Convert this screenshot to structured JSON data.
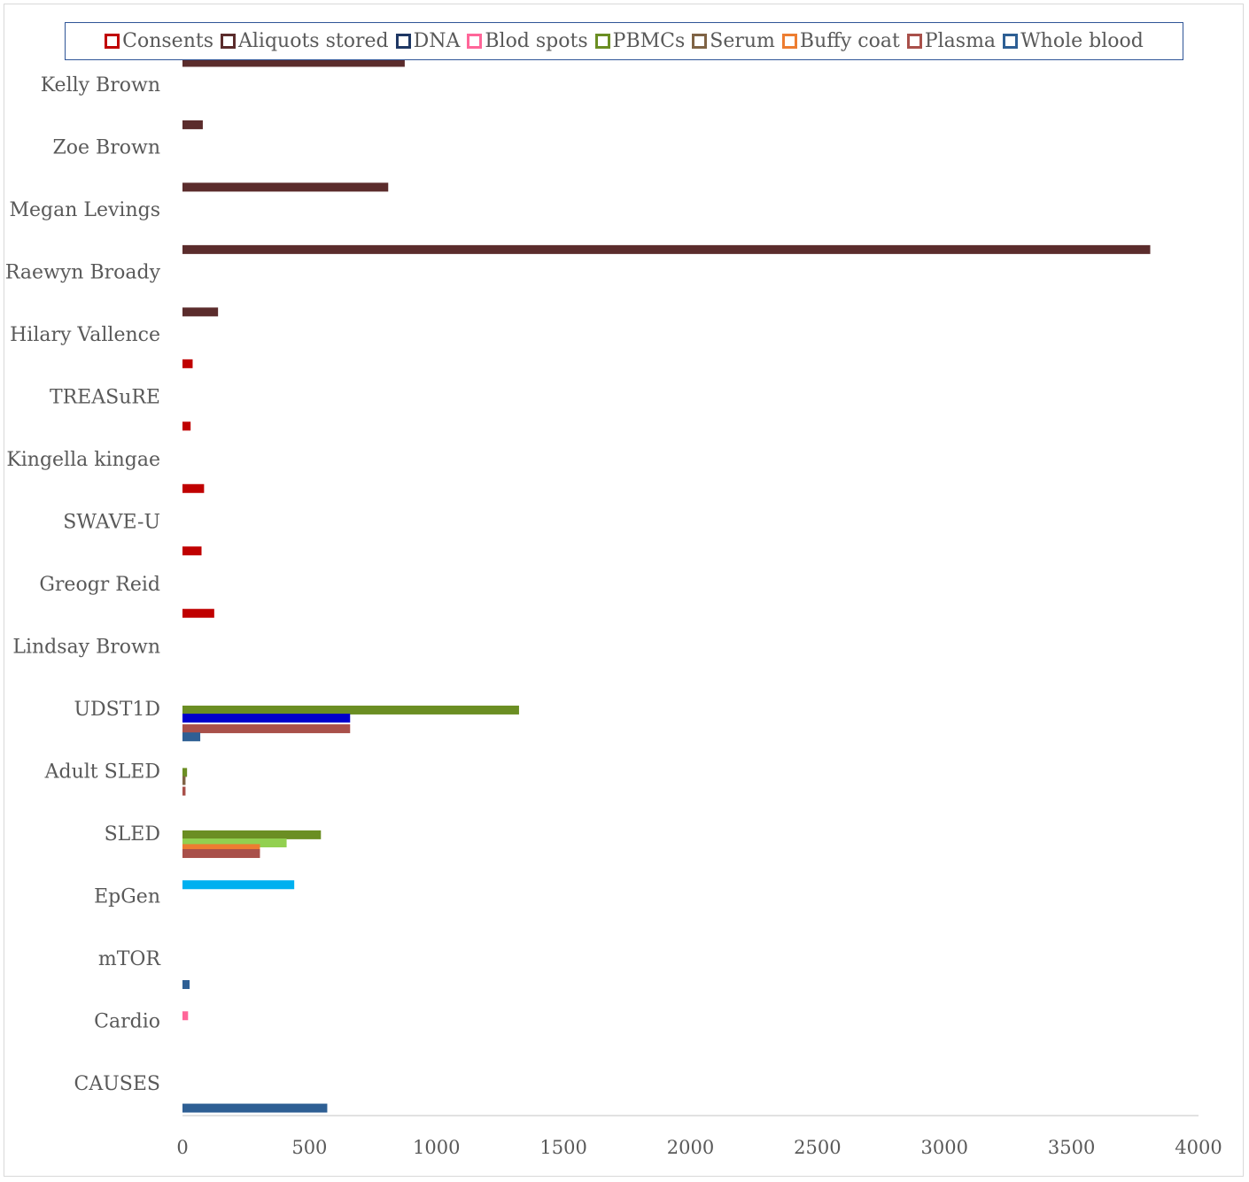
{
  "chart_data": {
    "type": "bar",
    "orientation": "horizontal",
    "legend_position": "top",
    "xlim": [
      0,
      4000
    ],
    "x_ticks": [
      "0",
      "500",
      "1000",
      "1500",
      "2000",
      "2500",
      "3000",
      "3500",
      "4000"
    ],
    "categories": [
      "Kelly Brown",
      "Zoe Brown",
      "Megan Levings",
      "Raewyn Broady",
      "Hilary Vallence",
      "TREASuRE",
      "Kingella kingae",
      "SWAVE-U",
      "Greogr Reid",
      "Lindsay Brown",
      "UDST1D",
      "Adult SLED",
      "SLED",
      "EpGen",
      "mTOR",
      "Cardio",
      "CAUSES"
    ],
    "legend": [
      {
        "name": "Consents",
        "color": "#c00000"
      },
      {
        "name": "Aliquots stored",
        "color": "#5b2c2c"
      },
      {
        "name": "DNA",
        "color": "#1f3864"
      },
      {
        "name": "Blod spots",
        "color": "#ff6699"
      },
      {
        "name": "PBMCs",
        "color": "#6b8e23"
      },
      {
        "name": "Serum",
        "color": "#7f6345"
      },
      {
        "name": "Buffy coat",
        "color": "#ed7d31"
      },
      {
        "name": "Plasma",
        "color": "#a9504a"
      },
      {
        "name": "Whole blood",
        "color": "#2e5f94"
      }
    ],
    "bars": [
      {
        "category": "Kelly Brown",
        "series": "Aliquots stored",
        "value": 875,
        "color": "#5b2c2c",
        "slot": -0.38
      },
      {
        "category": "Zoe Brown",
        "series": "Aliquots stored",
        "value": 80,
        "color": "#5b2c2c",
        "slot": -0.38
      },
      {
        "category": "Megan Levings",
        "series": "Aliquots stored",
        "value": 810,
        "color": "#5b2c2c",
        "slot": -0.38
      },
      {
        "category": "Raewyn Broady",
        "series": "Aliquots stored",
        "value": 3810,
        "color": "#5b2c2c",
        "slot": -0.38
      },
      {
        "category": "Hilary Vallence",
        "series": "Aliquots stored",
        "value": 140,
        "color": "#5b2c2c",
        "slot": -0.38
      },
      {
        "category": "TREASuRE",
        "series": "Consents",
        "value": 40,
        "color": "#c00000",
        "slot": -0.55
      },
      {
        "category": "Kingella kingae",
        "series": "Consents",
        "value": 32,
        "color": "#c00000",
        "slot": -0.55
      },
      {
        "category": "SWAVE-U",
        "series": "Consents",
        "value": 85,
        "color": "#c00000",
        "slot": -0.55
      },
      {
        "category": "Greogr Reid",
        "series": "Consents",
        "value": 75,
        "color": "#c00000",
        "slot": -0.55
      },
      {
        "category": "Lindsay Brown",
        "series": "Consents",
        "value": 125,
        "color": "#c00000",
        "slot": -0.55
      },
      {
        "category": "UDST1D",
        "series": "PBMCs",
        "value": 1325,
        "color": "#6b8e23",
        "slot": 0.0
      },
      {
        "category": "UDST1D",
        "series": "DNA",
        "value": 660,
        "color": "#0000cc",
        "slot": 0.13
      },
      {
        "category": "UDST1D",
        "series": "Plasma",
        "value": 660,
        "color": "#a9504a",
        "slot": 0.3
      },
      {
        "category": "UDST1D",
        "series": "Whole blood",
        "value": 70,
        "color": "#2e5f94",
        "slot": 0.43
      },
      {
        "category": "Adult SLED",
        "series": "PBMCs",
        "value": 18,
        "color": "#6b8e23",
        "slot": 0.0
      },
      {
        "category": "Adult SLED",
        "series": "Serum",
        "value": 12,
        "color": "#7f6345",
        "slot": 0.13
      },
      {
        "category": "Adult SLED",
        "series": "Plasma",
        "value": 12,
        "color": "#a9504a",
        "slot": 0.3
      },
      {
        "category": "SLED",
        "series": "PBMCs",
        "value": 545,
        "color": "#6b8e23",
        "slot": 0.0
      },
      {
        "category": "SLED",
        "series": "PBMCs",
        "value": 410,
        "color": "#92d050",
        "slot": 0.13
      },
      {
        "category": "SLED",
        "series": "Buffy coat",
        "value": 305,
        "color": "#ed7d31",
        "slot": 0.22
      },
      {
        "category": "SLED",
        "series": "Plasma",
        "value": 305,
        "color": "#a9504a",
        "slot": 0.3
      },
      {
        "category": "EpGen",
        "series": "",
        "value": 440,
        "color": "#00b0f0",
        "slot": -0.2
      },
      {
        "category": "mTOR",
        "series": "Whole blood",
        "value": 28,
        "color": "#2e5f94",
        "slot": 0.4
      },
      {
        "category": "Cardio",
        "series": "Blod spots",
        "value": 22,
        "color": "#ff6699",
        "slot": -0.1
      },
      {
        "category": "CAUSES",
        "series": "Whole blood",
        "value": 570,
        "color": "#2e5f94",
        "slot": 0.38
      }
    ]
  }
}
